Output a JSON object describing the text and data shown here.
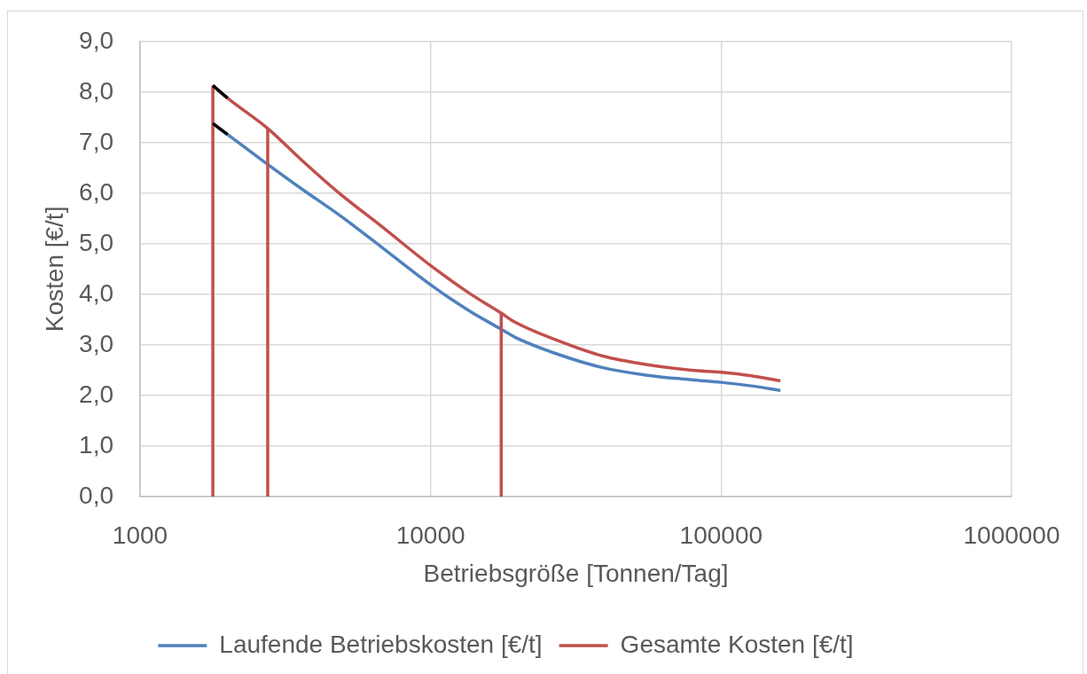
{
  "chart_data": {
    "type": "line",
    "xlabel": "Betriebsgröße [Tonnen/Tag]",
    "ylabel": "Kosten [€/t]",
    "log": "x",
    "xlim": [
      1000,
      1000000
    ],
    "xticks": [
      1000,
      10000,
      100000,
      1000000
    ],
    "ylim": [
      0,
      9
    ],
    "yticks": [
      {
        "value": 0,
        "label": "0,0"
      },
      {
        "value": 1,
        "label": "1,0"
      },
      {
        "value": 2,
        "label": "2,0"
      },
      {
        "value": 3,
        "label": "3,0"
      },
      {
        "value": 4,
        "label": "4,0"
      },
      {
        "value": 5,
        "label": "5,0"
      },
      {
        "value": 6,
        "label": "6,0"
      },
      {
        "value": 7,
        "label": "7,0"
      },
      {
        "value": 8,
        "label": "8,0"
      },
      {
        "value": 9,
        "label": "9,0"
      }
    ],
    "grid": true,
    "legend": "bottom",
    "marker": "none",
    "line_style": "solid",
    "series": [
      {
        "name": "Laufende Betriebskosten [€/t]",
        "color": "#4f81bd",
        "x": [
          1780,
          2000,
          2750,
          3590,
          4870,
          6760,
          10000,
          13700,
          17500,
          19400,
          27600,
          39200,
          55800,
          79200,
          100000,
          127000,
          160000
        ],
        "values": [
          7.38,
          7.16,
          6.57,
          6.09,
          5.56,
          4.94,
          4.19,
          3.66,
          3.31,
          3.16,
          2.81,
          2.55,
          2.4,
          2.31,
          2.26,
          2.19,
          2.1
        ]
      },
      {
        "name": "Gesamte Kosten [€/t]",
        "color": "#c0504d",
        "x": [
          1780,
          2000,
          2750,
          3590,
          4870,
          6760,
          10000,
          13700,
          17500,
          19400,
          27600,
          39200,
          55800,
          79200,
          100000,
          127000,
          160000
        ],
        "values": [
          8.13,
          7.88,
          7.28,
          6.66,
          5.99,
          5.35,
          4.57,
          4.01,
          3.63,
          3.46,
          3.08,
          2.78,
          2.61,
          2.5,
          2.46,
          2.39,
          2.29
        ]
      },
      {
        "type": "line",
        "color": "#c0504d",
        "x": [
          1780,
          1780
        ],
        "values": [
          0,
          8.13
        ]
      },
      {
        "type": "line",
        "color": "#c0504d",
        "x": [
          2750,
          2750
        ],
        "values": [
          0,
          7.28
        ]
      },
      {
        "type": "line",
        "color": "#c0504d",
        "x": [
          17500,
          17500
        ],
        "values": [
          0,
          3.63
        ]
      },
      {
        "type": "line",
        "color": "#000000",
        "x": [
          1780,
          2000
        ],
        "values": [
          8.13,
          7.88
        ]
      },
      {
        "type": "line",
        "color": "#000000",
        "x": [
          1780,
          2000
        ],
        "values": [
          7.38,
          7.16
        ]
      }
    ]
  }
}
